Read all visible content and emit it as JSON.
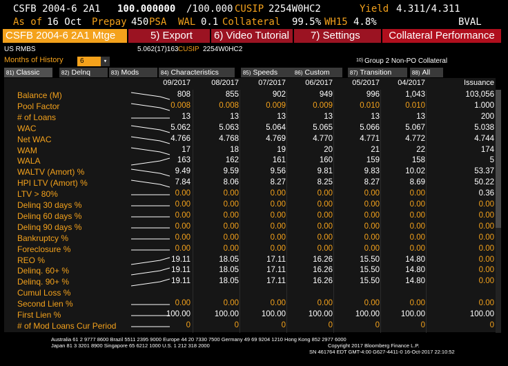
{
  "header": {
    "security": "CSFB 2004-6 2A1",
    "price": "100.000000",
    "price_sep": "/100.000",
    "cusip_label": "CUSIP",
    "cusip": "2254W0HC2",
    "yield_label": "Yield",
    "yield": "4.311/4.311",
    "asof_label": "As of",
    "asof": "16 Oct",
    "prepay_label": "Prepay",
    "prepay_value": "450",
    "prepay_unit": "PSA",
    "wal_label": "WAL",
    "wal": "0.1",
    "collateral_label": "Collateral",
    "collateral": "99.5%",
    "wh_label": "WH15",
    "wh": "4.8%",
    "source": "BVAL"
  },
  "menubar": {
    "security_mtge": "CSFB 2004-6 2A1 Mtge",
    "export": "5) Export",
    "video": "6) Video Tutorial",
    "settings": "7) Settings",
    "title": "Collateral Performance"
  },
  "subheader": {
    "type": "US RMBS",
    "coupon_info": "5.062(17)163",
    "cusip_label": "CUSIP",
    "cusip": "2254W0HC2",
    "months_label": "Months of History",
    "months_value": "6",
    "group_num": "10)",
    "group_label": "Group 2 Non-PO Collateral"
  },
  "tabs": [
    {
      "num": "81)",
      "label": "Classic"
    },
    {
      "num": "82)",
      "label": "Delnq"
    },
    {
      "num": "83)",
      "label": "Mods"
    },
    {
      "num": "84)",
      "label": "Characteristics"
    },
    {
      "num": "85)",
      "label": "Speeds"
    },
    {
      "num": "86)",
      "label": "Custom"
    },
    {
      "num": "87)",
      "label": "Transition"
    },
    {
      "num": "88)",
      "label": "All"
    }
  ],
  "columns": [
    "09/2017",
    "08/2017",
    "07/2017",
    "06/2017",
    "05/2017",
    "04/2017",
    "Issuance"
  ],
  "rows": [
    {
      "label": "Balance (M)",
      "values": [
        "808",
        "855",
        "902",
        "949",
        "996",
        "1,043",
        "103,056"
      ],
      "spark": "down"
    },
    {
      "label": "Pool Factor",
      "values": [
        "0.008",
        "0.008",
        "0.009",
        "0.009",
        "0.010",
        "0.010",
        "1.000"
      ],
      "spark": "down"
    },
    {
      "label": "# of Loans",
      "values": [
        "13",
        "13",
        "13",
        "13",
        "13",
        "13",
        "200"
      ],
      "spark": "flat"
    },
    {
      "label": "WAC",
      "values": [
        "5.062",
        "5.063",
        "5.064",
        "5.065",
        "5.066",
        "5.067",
        "5.038"
      ],
      "spark": "down"
    },
    {
      "label": "Net WAC",
      "values": [
        "4.766",
        "4.768",
        "4.769",
        "4.770",
        "4.771",
        "4.772",
        "4.744"
      ],
      "spark": "down"
    },
    {
      "label": "WAM",
      "values": [
        "17",
        "18",
        "19",
        "20",
        "21",
        "22",
        "174"
      ],
      "spark": "down"
    },
    {
      "label": "WALA",
      "values": [
        "163",
        "162",
        "161",
        "160",
        "159",
        "158",
        "5"
      ],
      "spark": "up"
    },
    {
      "label": "WALTV (Amort) %",
      "values": [
        "9.49",
        "9.59",
        "9.56",
        "9.81",
        "9.83",
        "10.02",
        "53.37"
      ],
      "spark": "down"
    },
    {
      "label": "HPI LTV (Amort) %",
      "values": [
        "7.84",
        "8.06",
        "8.27",
        "8.25",
        "8.27",
        "8.69",
        "50.22"
      ],
      "spark": "down"
    },
    {
      "label": "LTV > 80%",
      "values": [
        "0.00",
        "0.00",
        "0.00",
        "0.00",
        "0.00",
        "0.00",
        "0.36"
      ],
      "spark": "flat"
    },
    {
      "label": "Delinq 30 days %",
      "values": [
        "0.00",
        "0.00",
        "0.00",
        "0.00",
        "0.00",
        "0.00",
        "0.00"
      ],
      "spark": "flat"
    },
    {
      "label": "Delinq 60 days %",
      "values": [
        "0.00",
        "0.00",
        "0.00",
        "0.00",
        "0.00",
        "0.00",
        "0.00"
      ],
      "spark": "flat"
    },
    {
      "label": "Delinq 90 days %",
      "values": [
        "0.00",
        "0.00",
        "0.00",
        "0.00",
        "0.00",
        "0.00",
        "0.00"
      ],
      "spark": "flat"
    },
    {
      "label": "Bankruptcy %",
      "values": [
        "0.00",
        "0.00",
        "0.00",
        "0.00",
        "0.00",
        "0.00",
        "0.00"
      ],
      "spark": "flat"
    },
    {
      "label": "Foreclosure %",
      "values": [
        "0.00",
        "0.00",
        "0.00",
        "0.00",
        "0.00",
        "0.00",
        "0.00"
      ],
      "spark": "flat"
    },
    {
      "label": "REO %",
      "values": [
        "19.11",
        "18.05",
        "17.11",
        "16.26",
        "15.50",
        "14.80",
        "0.00"
      ],
      "spark": "up"
    },
    {
      "label": "Delinq. 60+ %",
      "values": [
        "19.11",
        "18.05",
        "17.11",
        "16.26",
        "15.50",
        "14.80",
        "0.00"
      ],
      "spark": "up"
    },
    {
      "label": "Delinq. 90+ %",
      "values": [
        "19.11",
        "18.05",
        "17.11",
        "16.26",
        "15.50",
        "14.80",
        "0.00"
      ],
      "spark": "up"
    },
    {
      "label": "Cumul Loss %",
      "values": [
        "",
        "",
        "",
        "",
        "",
        "",
        ""
      ],
      "spark": "none"
    },
    {
      "label": "Second Lien %",
      "values": [
        "0.00",
        "0.00",
        "0.00",
        "0.00",
        "0.00",
        "0.00",
        "0.00"
      ],
      "spark": "flat"
    },
    {
      "label": "First Lien %",
      "values": [
        "100.00",
        "100.00",
        "100.00",
        "100.00",
        "100.00",
        "100.00",
        "100.00"
      ],
      "spark": "flat"
    },
    {
      "label": "# of Mod Loans Cur Period",
      "values": [
        "0",
        "0",
        "0",
        "0",
        "0",
        "0",
        "0"
      ],
      "spark": "flat"
    }
  ],
  "footer": {
    "line1": "Australia 61 2 9777 8600 Brazil 5511 2395 9000 Europe 44 20 7330 7500 Germany 49 69 9204 1210 Hong Kong 852 2977 6000",
    "line2a": "Japan 81 3 3201 8900        Singapore 65 6212 1000        U.S. 1 212 318 2000",
    "line2b": "Copyright 2017 Bloomberg Finance L.P.",
    "line3": "SN 461764 EDT  GMT-4:00 G627-4411-0 16-Oct-2017 22:10:52"
  }
}
